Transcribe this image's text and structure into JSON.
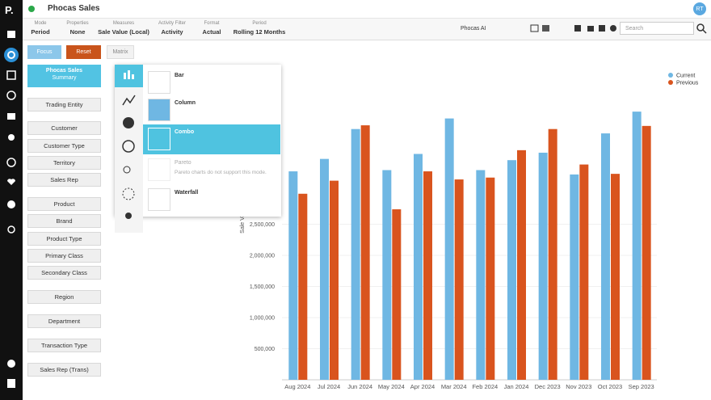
{
  "app": {
    "logo": "P.",
    "title": "Phocas Sales",
    "avatar": "RT"
  },
  "toolbar": {
    "groups": [
      {
        "label": "Mode",
        "value": "Period"
      },
      {
        "label": "Properties",
        "value": "None"
      },
      {
        "label": "Measures",
        "value": "Sale Value (Local)"
      },
      {
        "label": "Activity Filter",
        "value": "Activity"
      },
      {
        "label": "Format",
        "value": "Actual"
      },
      {
        "label": "Period",
        "value": "Rolling 12 Months"
      }
    ],
    "ai": "Phocas AI",
    "search": "Search"
  },
  "buttons": {
    "focus": "Focus",
    "reset": "Reset",
    "matrix": "Matrix"
  },
  "sidebar": {
    "summary_title": "Phocas Sales",
    "summary_subtitle": "Summary",
    "dimensions": [
      "Trading Entity",
      "Customer",
      "Customer Type",
      "Territory",
      "Sales Rep",
      "Product",
      "Brand",
      "Product Type",
      "Primary Class",
      "Secondary Class",
      "Region",
      "Department",
      "Transaction Type",
      "Sales Rep (Trans)"
    ]
  },
  "chart_menu": {
    "items": [
      {
        "label": "Bar"
      },
      {
        "label": "Column"
      },
      {
        "label": "Combo"
      },
      {
        "label": "Pareto",
        "note": "Pareto charts do not support this mode."
      },
      {
        "label": "Waterfall"
      }
    ]
  },
  "chart_data": {
    "type": "bar",
    "y_label": "Sale Value (",
    "categories": [
      "Aug 2024",
      "Jul 2024",
      "Jun 2024",
      "May 2024",
      "Apr 2024",
      "Mar 2024",
      "Feb 2024",
      "Jan 2024",
      "Dec 2023",
      "Nov 2023",
      "Oct 2023",
      "Sep 2023"
    ],
    "series": [
      {
        "name": "Current",
        "color": "#6fb7e3",
        "values": [
          3350000,
          3550000,
          4030000,
          3370000,
          3630000,
          4200000,
          3370000,
          3530000,
          3650000,
          3300000,
          3960000,
          4310000
        ]
      },
      {
        "name": "Previous",
        "color": "#d9541e",
        "values": [
          2990000,
          3200000,
          4090000,
          2740000,
          3350000,
          3220000,
          3250000,
          3690000,
          4030000,
          3460000,
          3310000,
          4080000
        ]
      }
    ],
    "ylim": [
      0,
      5000000
    ],
    "yticks": [
      {
        "value": 500000,
        "label": "500,000"
      },
      {
        "value": 1000000,
        "label": "1,000,000"
      },
      {
        "value": 1500000,
        "label": "1,500,000"
      },
      {
        "value": 2000000,
        "label": "2,000,000"
      },
      {
        "value": 2500000,
        "label": "2,500,000"
      }
    ],
    "legend_position": "top-right",
    "grid": true
  }
}
